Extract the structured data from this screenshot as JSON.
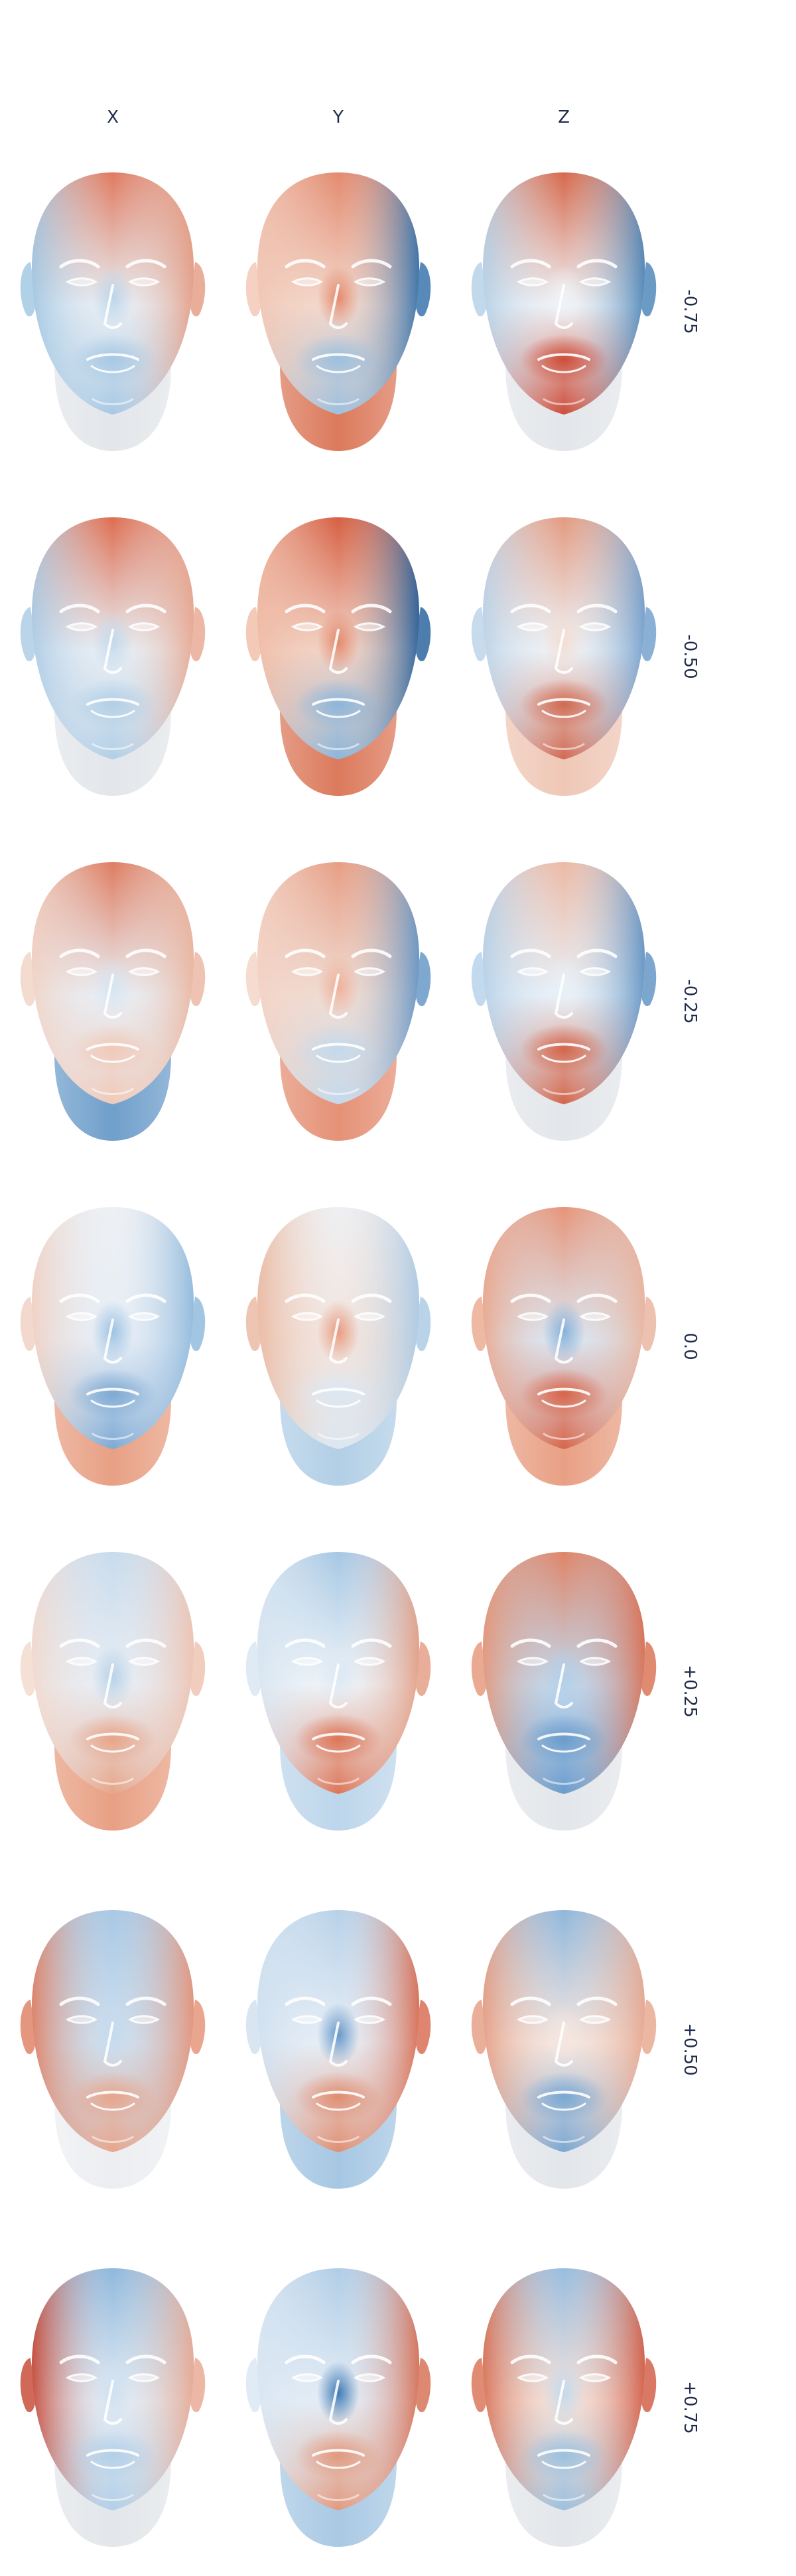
{
  "columns": [
    "X",
    "Y",
    "Z"
  ],
  "rows": [
    {
      "label": "-0.75",
      "heads": [
        {
          "top": "#e07a5f",
          "left": "#9ec5e2",
          "right": "#e39a80",
          "center": "#e8eef4",
          "mouth": "#a7c8e3",
          "neck": "#e3e6ea",
          "nose": "#bcd5ea"
        },
        {
          "top": "#e38a6f",
          "left": "#f1c6b4",
          "right": "#2e6da8",
          "center": "#f3d8cc",
          "mouth": "#9cc0de",
          "neck": "#dc7a5c",
          "nose": "#e38a6f"
        },
        {
          "top": "#d6684b",
          "left": "#b3cfe6",
          "right": "#4682b6",
          "center": "#eef2f6",
          "mouth": "#cc4d3a",
          "neck": "#e3e6ea",
          "nose": "#eef2f6"
        }
      ]
    },
    {
      "label": "-0.50",
      "heads": [
        {
          "top": "#de6d50",
          "left": "#a9c9e4",
          "right": "#e7a58d",
          "center": "#e8eef4",
          "mouth": "#b2cfe6",
          "neck": "#e3e6ea",
          "nose": "#c3d9ec"
        },
        {
          "top": "#d65f43",
          "left": "#f0bca6",
          "right": "#1f5c99",
          "center": "#f2d3c5",
          "mouth": "#8cb6da",
          "neck": "#dc7a5c",
          "nose": "#e38a6f"
        },
        {
          "top": "#e39a80",
          "left": "#b9d2e8",
          "right": "#6d9ccb",
          "center": "#eef2f6",
          "mouth": "#d06a52",
          "neck": "#efc7b6",
          "nose": "#f3ddd3"
        }
      ]
    },
    {
      "label": "-0.25",
      "heads": [
        {
          "top": "#df7c5f",
          "left": "#f1d2c4",
          "right": "#eab49d",
          "center": "#e9eef4",
          "mouth": "#f0c9b8",
          "neck": "#6f9fcb",
          "nose": "#d6e5f1"
        },
        {
          "top": "#e79e84",
          "left": "#f4d2c4",
          "right": "#5f92c4",
          "center": "#f0dcd3",
          "mouth": "#c4d9ec",
          "neck": "#e59176",
          "nose": "#eeb19b"
        },
        {
          "top": "#ecb9a5",
          "left": "#b4d0e8",
          "right": "#5d90c2",
          "center": "#e8f0f7",
          "mouth": "#d2664c",
          "neck": "#e3e6ea",
          "nose": "#e8f0f7"
        }
      ]
    },
    {
      "label": "0.0",
      "heads": [
        {
          "top": "#eef0f3",
          "left": "#f0cfc0",
          "right": "#8bb6db",
          "center": "#e7eef6",
          "mouth": "#7ea9d3",
          "neck": "#e8a084",
          "nose": "#9dc2e3"
        },
        {
          "top": "#eef0f3",
          "left": "#eab79f",
          "right": "#a7c8e4",
          "center": "#f2e4dd",
          "mouth": "#dbe7f2",
          "neck": "#b2cfe6",
          "nose": "#e79c81"
        },
        {
          "top": "#e79478",
          "left": "#eaa68c",
          "right": "#e9b29b",
          "center": "#dbe6f1",
          "mouth": "#d8654a",
          "neck": "#e8a084",
          "nose": "#86b1d9"
        }
      ]
    },
    {
      "label": "+0.25",
      "heads": [
        {
          "top": "#c8dbec",
          "left": "#f2d8cc",
          "right": "#eec0ad",
          "center": "#e8eef5",
          "mouth": "#e7a589",
          "neck": "#e8a084",
          "nose": "#b8d2e8"
        },
        {
          "top": "#a6c7e3",
          "left": "#d7e5f1",
          "right": "#e29a7f",
          "center": "#eef3f8",
          "mouth": "#dc7557",
          "neck": "#bdd6eb",
          "nose": "#dce8f3"
        },
        {
          "top": "#e08466",
          "left": "#e59577",
          "right": "#d96d4f",
          "center": "#c1d7ec",
          "mouth": "#6b9ccc",
          "neck": "#e3e6ea",
          "nose": "#b3cfe7"
        }
      ]
    },
    {
      "label": "+0.50",
      "heads": [
        {
          "top": "#a9c8e4",
          "left": "#df7c5f",
          "right": "#e58f72",
          "center": "#cfe0ef",
          "mouth": "#e7a58d",
          "neck": "#eceef1",
          "nose": "#c5daed"
        },
        {
          "top": "#b7d1e8",
          "left": "#cfe0ef",
          "right": "#d7674b",
          "center": "#e7eef6",
          "mouth": "#e08e72",
          "neck": "#a6c7e3",
          "nose": "#6797c8"
        },
        {
          "top": "#8fb7dc",
          "left": "#e59b80",
          "right": "#e6a58c",
          "center": "#f5e6df",
          "mouth": "#7aa7d2",
          "neck": "#e3e6ea",
          "nose": "#f5e6df"
        }
      ]
    },
    {
      "label": "+0.75",
      "heads": [
        {
          "top": "#8fb8dc",
          "left": "#c5432f",
          "right": "#e7a58d",
          "center": "#e3ecf5",
          "mouth": "#b3cfe7",
          "neck": "#e3e6ea",
          "nose": "#cfe0ef"
        },
        {
          "top": "#b0cde6",
          "left": "#d9e6f2",
          "right": "#d56a4e",
          "center": "#e4edf6",
          "mouth": "#e29a7f",
          "neck": "#a9c9e4",
          "nose": "#3f7ab4"
        },
        {
          "top": "#97bde0",
          "left": "#d86e51",
          "right": "#d0583f",
          "center": "#f4e2da",
          "mouth": "#9cc0de",
          "neck": "#e3e6ea",
          "nose": "#c4d9ec"
        }
      ]
    }
  ]
}
